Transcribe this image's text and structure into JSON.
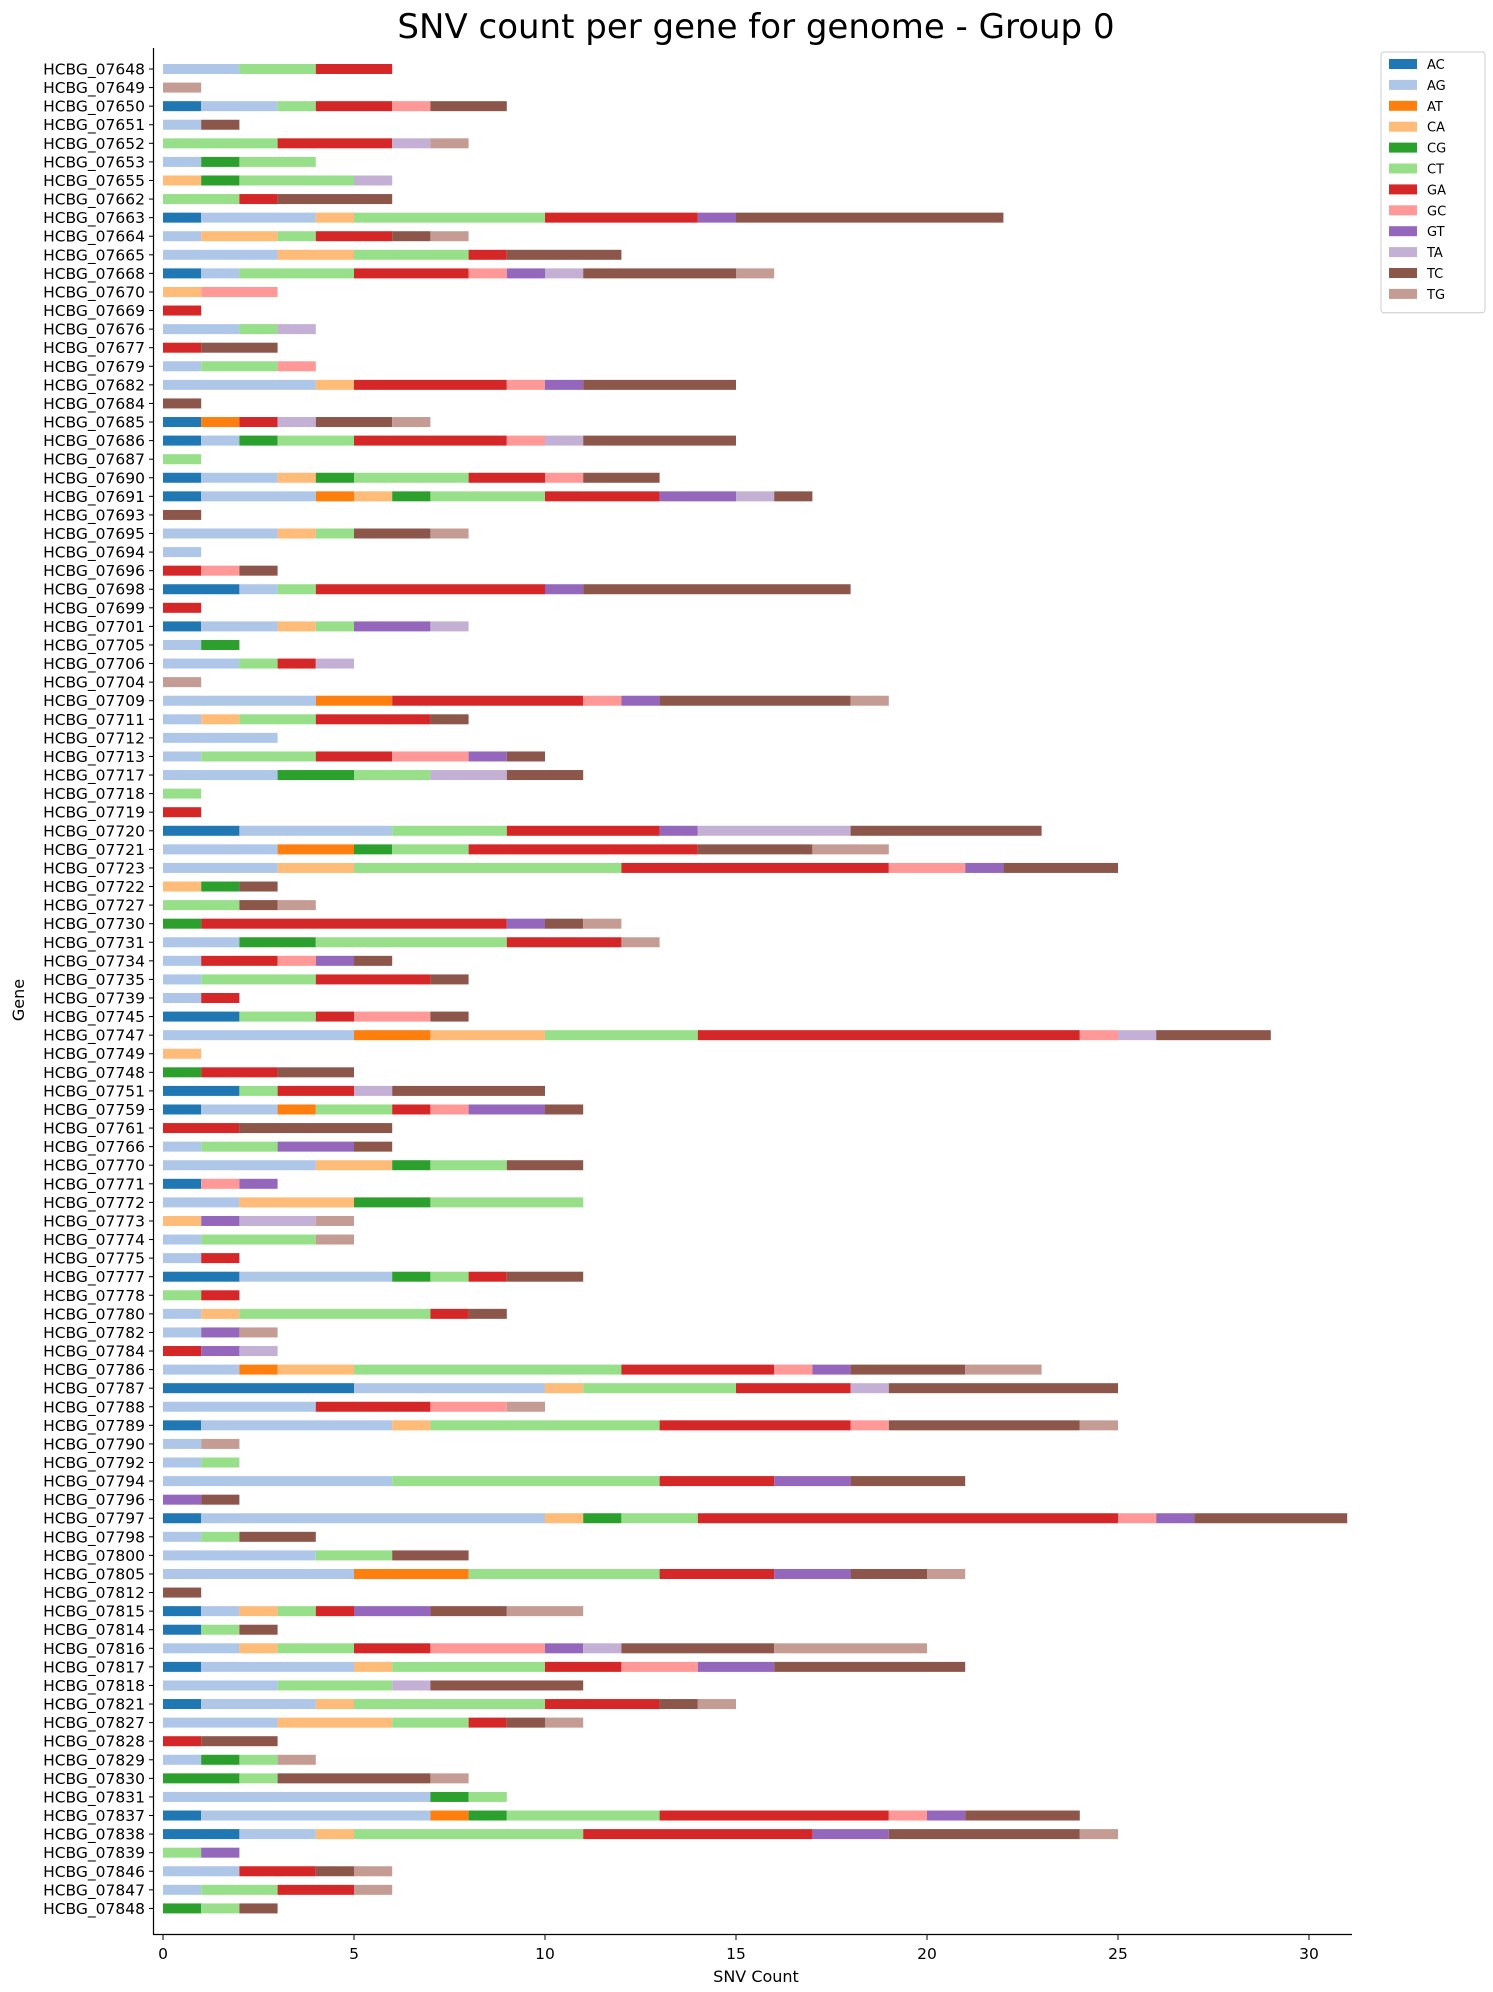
{
  "chart_data": {
    "type": "bar",
    "orientation": "horizontal",
    "stacked": true,
    "title": "SNV count per gene for genome - Group 0",
    "xlabel": "SNV Count",
    "ylabel": "Gene",
    "xlim": [
      0,
      31
    ],
    "xticks": [
      0,
      5,
      10,
      15,
      20,
      25,
      30
    ],
    "grid": false,
    "legend_position": "outside top-right",
    "series_names": [
      "AC",
      "AG",
      "AT",
      "CA",
      "CG",
      "CT",
      "GA",
      "GC",
      "GT",
      "TA",
      "TC",
      "TG"
    ],
    "colors": {
      "AC": "#1f77b4",
      "AG": "#aec7e8",
      "AT": "#ff7f0e",
      "CA": "#ffbb78",
      "CG": "#2ca02c",
      "CT": "#98df8a",
      "GA": "#d62728",
      "GC": "#ff9896",
      "GT": "#9467bd",
      "TA": "#c5b0d5",
      "TC": "#8c564b",
      "TG": "#c49c94"
    },
    "genes": [
      {
        "gene": "HCBG_07648",
        "counts": {
          "AG": 2,
          "CT": 2,
          "GA": 2
        }
      },
      {
        "gene": "HCBG_07649",
        "counts": {
          "TG": 1
        }
      },
      {
        "gene": "HCBG_07650",
        "counts": {
          "AC": 1,
          "AG": 2,
          "CT": 1,
          "GA": 2,
          "GC": 1,
          "TC": 2
        }
      },
      {
        "gene": "HCBG_07651",
        "counts": {
          "AG": 1,
          "TC": 1
        }
      },
      {
        "gene": "HCBG_07652",
        "counts": {
          "CT": 3,
          "GA": 3,
          "TA": 1,
          "TG": 1
        }
      },
      {
        "gene": "HCBG_07653",
        "counts": {
          "AG": 1,
          "CG": 1,
          "CT": 2
        }
      },
      {
        "gene": "HCBG_07655",
        "counts": {
          "CA": 1,
          "CG": 1,
          "CT": 3,
          "TA": 1
        }
      },
      {
        "gene": "HCBG_07662",
        "counts": {
          "CT": 2,
          "GA": 1,
          "TC": 3
        }
      },
      {
        "gene": "HCBG_07663",
        "counts": {
          "AC": 1,
          "AG": 3,
          "CA": 1,
          "CT": 5,
          "GA": 4,
          "GT": 1,
          "TC": 7
        }
      },
      {
        "gene": "HCBG_07664",
        "counts": {
          "AG": 1,
          "CA": 2,
          "CT": 1,
          "GA": 2,
          "TC": 1,
          "TG": 1
        }
      },
      {
        "gene": "HCBG_07665",
        "counts": {
          "AG": 3,
          "CA": 2,
          "CT": 3,
          "GA": 1,
          "TC": 3
        }
      },
      {
        "gene": "HCBG_07668",
        "counts": {
          "AC": 1,
          "AG": 1,
          "CT": 3,
          "GA": 3,
          "GC": 1,
          "GT": 1,
          "TA": 1,
          "TC": 4,
          "TG": 1
        }
      },
      {
        "gene": "HCBG_07670",
        "counts": {
          "CA": 1,
          "GC": 2
        }
      },
      {
        "gene": "HCBG_07669",
        "counts": {
          "GA": 1
        }
      },
      {
        "gene": "HCBG_07676",
        "counts": {
          "AG": 2,
          "CT": 1,
          "TA": 1
        }
      },
      {
        "gene": "HCBG_07677",
        "counts": {
          "GA": 1,
          "TC": 2
        }
      },
      {
        "gene": "HCBG_07679",
        "counts": {
          "AG": 1,
          "CT": 2,
          "GC": 1
        }
      },
      {
        "gene": "HCBG_07682",
        "counts": {
          "AG": 4,
          "CA": 1,
          "GA": 4,
          "GC": 1,
          "GT": 1,
          "TC": 4
        }
      },
      {
        "gene": "HCBG_07684",
        "counts": {
          "TC": 1
        }
      },
      {
        "gene": "HCBG_07685",
        "counts": {
          "AC": 1,
          "AT": 1,
          "GA": 1,
          "TA": 1,
          "TC": 2,
          "TG": 1
        }
      },
      {
        "gene": "HCBG_07686",
        "counts": {
          "AC": 1,
          "AG": 1,
          "CG": 1,
          "CT": 2,
          "GA": 4,
          "GC": 1,
          "TA": 1,
          "TC": 4
        }
      },
      {
        "gene": "HCBG_07687",
        "counts": {
          "CT": 1
        }
      },
      {
        "gene": "HCBG_07690",
        "counts": {
          "AC": 1,
          "AG": 2,
          "CA": 1,
          "CG": 1,
          "CT": 3,
          "GA": 2,
          "GC": 1,
          "TC": 2
        }
      },
      {
        "gene": "HCBG_07691",
        "counts": {
          "AC": 1,
          "AG": 3,
          "AT": 1,
          "CA": 1,
          "CG": 1,
          "CT": 3,
          "GA": 3,
          "GT": 2,
          "TA": 1,
          "TC": 1
        }
      },
      {
        "gene": "HCBG_07693",
        "counts": {
          "TC": 1
        }
      },
      {
        "gene": "HCBG_07695",
        "counts": {
          "AG": 3,
          "CA": 1,
          "CT": 1,
          "TC": 2,
          "TG": 1
        }
      },
      {
        "gene": "HCBG_07694",
        "counts": {
          "AG": 1
        }
      },
      {
        "gene": "HCBG_07696",
        "counts": {
          "GA": 1,
          "GC": 1,
          "TC": 1
        }
      },
      {
        "gene": "HCBG_07698",
        "counts": {
          "AC": 2,
          "AG": 1,
          "CT": 1,
          "GA": 6,
          "GT": 1,
          "TC": 7
        }
      },
      {
        "gene": "HCBG_07699",
        "counts": {
          "GA": 1
        }
      },
      {
        "gene": "HCBG_07701",
        "counts": {
          "AC": 1,
          "AG": 2,
          "CA": 1,
          "CT": 1,
          "GT": 2,
          "TA": 1
        }
      },
      {
        "gene": "HCBG_07705",
        "counts": {
          "AG": 1,
          "CG": 1
        }
      },
      {
        "gene": "HCBG_07706",
        "counts": {
          "AG": 2,
          "CT": 1,
          "GA": 1,
          "TA": 1
        }
      },
      {
        "gene": "HCBG_07704",
        "counts": {
          "TG": 1
        }
      },
      {
        "gene": "HCBG_07709",
        "counts": {
          "AG": 4,
          "AT": 2,
          "GA": 5,
          "GC": 1,
          "GT": 1,
          "TC": 5,
          "TG": 1
        }
      },
      {
        "gene": "HCBG_07711",
        "counts": {
          "AG": 1,
          "CA": 1,
          "CT": 2,
          "GA": 3,
          "TC": 1
        }
      },
      {
        "gene": "HCBG_07712",
        "counts": {
          "AG": 3
        }
      },
      {
        "gene": "HCBG_07713",
        "counts": {
          "AG": 1,
          "CT": 3,
          "GA": 2,
          "GC": 2,
          "GT": 1,
          "TC": 1
        }
      },
      {
        "gene": "HCBG_07717",
        "counts": {
          "AG": 3,
          "CG": 2,
          "CT": 2,
          "TA": 2,
          "TC": 2
        }
      },
      {
        "gene": "HCBG_07718",
        "counts": {
          "CT": 1
        }
      },
      {
        "gene": "HCBG_07719",
        "counts": {
          "GA": 1
        }
      },
      {
        "gene": "HCBG_07720",
        "counts": {
          "AC": 2,
          "AG": 4,
          "CT": 3,
          "GA": 4,
          "GT": 1,
          "TA": 4,
          "TC": 5
        }
      },
      {
        "gene": "HCBG_07721",
        "counts": {
          "AG": 3,
          "AT": 2,
          "CG": 1,
          "CT": 2,
          "GA": 6,
          "TC": 3,
          "TG": 2
        }
      },
      {
        "gene": "HCBG_07723",
        "counts": {
          "AG": 3,
          "CA": 2,
          "CT": 7,
          "GA": 7,
          "GC": 2,
          "GT": 1,
          "TC": 3
        }
      },
      {
        "gene": "HCBG_07722",
        "counts": {
          "CA": 1,
          "CG": 1,
          "TC": 1
        }
      },
      {
        "gene": "HCBG_07727",
        "counts": {
          "CT": 2,
          "TC": 1,
          "TG": 1
        }
      },
      {
        "gene": "HCBG_07730",
        "counts": {
          "CG": 1,
          "GA": 8,
          "GT": 1,
          "TC": 1,
          "TG": 1
        }
      },
      {
        "gene": "HCBG_07731",
        "counts": {
          "AG": 2,
          "CG": 2,
          "CT": 5,
          "GA": 3,
          "TG": 1
        }
      },
      {
        "gene": "HCBG_07734",
        "counts": {
          "AG": 1,
          "GA": 2,
          "GC": 1,
          "GT": 1,
          "TC": 1
        }
      },
      {
        "gene": "HCBG_07735",
        "counts": {
          "AG": 1,
          "CT": 3,
          "GA": 3,
          "TC": 1
        }
      },
      {
        "gene": "HCBG_07739",
        "counts": {
          "AG": 1,
          "GA": 1
        }
      },
      {
        "gene": "HCBG_07745",
        "counts": {
          "AC": 2,
          "CT": 2,
          "GA": 1,
          "GC": 2,
          "TC": 1
        }
      },
      {
        "gene": "HCBG_07747",
        "counts": {
          "AG": 5,
          "AT": 2,
          "CA": 3,
          "CT": 4,
          "GA": 10,
          "GC": 1,
          "TA": 1,
          "TC": 3
        }
      },
      {
        "gene": "HCBG_07749",
        "counts": {
          "CA": 1
        }
      },
      {
        "gene": "HCBG_07748",
        "counts": {
          "CG": 1,
          "GA": 2,
          "TC": 2
        }
      },
      {
        "gene": "HCBG_07751",
        "counts": {
          "AC": 2,
          "CT": 1,
          "GA": 2,
          "TA": 1,
          "TC": 4
        }
      },
      {
        "gene": "HCBG_07759",
        "counts": {
          "AC": 1,
          "AG": 2,
          "AT": 1,
          "CT": 2,
          "GA": 1,
          "GC": 1,
          "GT": 2,
          "TC": 1
        }
      },
      {
        "gene": "HCBG_07761",
        "counts": {
          "GA": 2,
          "TC": 4
        }
      },
      {
        "gene": "HCBG_07766",
        "counts": {
          "AG": 1,
          "CT": 2,
          "GT": 2,
          "TC": 1
        }
      },
      {
        "gene": "HCBG_07770",
        "counts": {
          "AG": 4,
          "CA": 2,
          "CG": 1,
          "CT": 2,
          "TC": 2
        }
      },
      {
        "gene": "HCBG_07771",
        "counts": {
          "AC": 1,
          "GC": 1,
          "GT": 1
        }
      },
      {
        "gene": "HCBG_07772",
        "counts": {
          "AG": 2,
          "CA": 3,
          "CG": 2,
          "CT": 4
        }
      },
      {
        "gene": "HCBG_07773",
        "counts": {
          "CA": 1,
          "GT": 1,
          "TA": 2,
          "TG": 1
        }
      },
      {
        "gene": "HCBG_07774",
        "counts": {
          "AG": 1,
          "CT": 3,
          "TG": 1
        }
      },
      {
        "gene": "HCBG_07775",
        "counts": {
          "AG": 1,
          "GA": 1
        }
      },
      {
        "gene": "HCBG_07777",
        "counts": {
          "AC": 2,
          "AG": 4,
          "CG": 1,
          "CT": 1,
          "GA": 1,
          "TC": 2
        }
      },
      {
        "gene": "HCBG_07778",
        "counts": {
          "CT": 1,
          "GA": 1
        }
      },
      {
        "gene": "HCBG_07780",
        "counts": {
          "AG": 1,
          "CA": 1,
          "CT": 5,
          "GA": 1,
          "TC": 1
        }
      },
      {
        "gene": "HCBG_07782",
        "counts": {
          "AG": 1,
          "GT": 1,
          "TG": 1
        }
      },
      {
        "gene": "HCBG_07784",
        "counts": {
          "GA": 1,
          "GT": 1,
          "TA": 1
        }
      },
      {
        "gene": "HCBG_07786",
        "counts": {
          "AG": 2,
          "AT": 1,
          "CA": 2,
          "CT": 7,
          "GA": 4,
          "GC": 1,
          "GT": 1,
          "TC": 3,
          "TG": 2
        }
      },
      {
        "gene": "HCBG_07787",
        "counts": {
          "AC": 5,
          "AG": 5,
          "CA": 1,
          "CT": 4,
          "GA": 3,
          "TA": 1,
          "TC": 6
        }
      },
      {
        "gene": "HCBG_07788",
        "counts": {
          "AG": 4,
          "GA": 3,
          "GC": 2,
          "TG": 1
        }
      },
      {
        "gene": "HCBG_07789",
        "counts": {
          "AC": 1,
          "AG": 5,
          "CA": 1,
          "CT": 6,
          "GA": 5,
          "GC": 1,
          "TC": 5,
          "TG": 1
        }
      },
      {
        "gene": "HCBG_07790",
        "counts": {
          "AG": 1,
          "TG": 1
        }
      },
      {
        "gene": "HCBG_07792",
        "counts": {
          "AG": 1,
          "CT": 1
        }
      },
      {
        "gene": "HCBG_07794",
        "counts": {
          "AG": 6,
          "CT": 7,
          "GA": 3,
          "GT": 2,
          "TC": 3
        }
      },
      {
        "gene": "HCBG_07796",
        "counts": {
          "GT": 1,
          "TC": 1
        }
      },
      {
        "gene": "HCBG_07797",
        "counts": {
          "AC": 1,
          "AG": 9,
          "CA": 1,
          "CG": 1,
          "CT": 2,
          "GA": 11,
          "GC": 1,
          "GT": 1,
          "TC": 4
        }
      },
      {
        "gene": "HCBG_07798",
        "counts": {
          "AG": 1,
          "CT": 1,
          "TC": 2
        }
      },
      {
        "gene": "HCBG_07800",
        "counts": {
          "AG": 4,
          "CT": 2,
          "TC": 2
        }
      },
      {
        "gene": "HCBG_07805",
        "counts": {
          "AG": 5,
          "AT": 3,
          "CT": 5,
          "GA": 3,
          "GT": 2,
          "TC": 2,
          "TG": 1
        }
      },
      {
        "gene": "HCBG_07812",
        "counts": {
          "TC": 1
        }
      },
      {
        "gene": "HCBG_07815",
        "counts": {
          "AC": 1,
          "AG": 1,
          "CA": 1,
          "CT": 1,
          "GA": 1,
          "GT": 2,
          "TC": 2,
          "TG": 2
        }
      },
      {
        "gene": "HCBG_07814",
        "counts": {
          "AC": 1,
          "CT": 1,
          "TC": 1
        }
      },
      {
        "gene": "HCBG_07816",
        "counts": {
          "AG": 2,
          "CA": 1,
          "CT": 2,
          "GA": 2,
          "GC": 3,
          "GT": 1,
          "TA": 1,
          "TC": 4,
          "TG": 4
        }
      },
      {
        "gene": "HCBG_07817",
        "counts": {
          "AC": 1,
          "AG": 4,
          "CA": 1,
          "CT": 4,
          "GA": 2,
          "GC": 2,
          "GT": 2,
          "TC": 5
        }
      },
      {
        "gene": "HCBG_07818",
        "counts": {
          "AG": 3,
          "CT": 3,
          "TA": 1,
          "TC": 4
        }
      },
      {
        "gene": "HCBG_07821",
        "counts": {
          "AC": 1,
          "AG": 3,
          "CA": 1,
          "CT": 5,
          "GA": 3,
          "TC": 1,
          "TG": 1
        }
      },
      {
        "gene": "HCBG_07827",
        "counts": {
          "AG": 3,
          "CA": 3,
          "CT": 2,
          "GA": 1,
          "TC": 1,
          "TG": 1
        }
      },
      {
        "gene": "HCBG_07828",
        "counts": {
          "GA": 1,
          "TC": 2
        }
      },
      {
        "gene": "HCBG_07829",
        "counts": {
          "AG": 1,
          "CG": 1,
          "CT": 1,
          "TG": 1
        }
      },
      {
        "gene": "HCBG_07830",
        "counts": {
          "CG": 2,
          "CT": 1,
          "TC": 4,
          "TG": 1
        }
      },
      {
        "gene": "HCBG_07831",
        "counts": {
          "AG": 7,
          "CG": 1,
          "CT": 1
        }
      },
      {
        "gene": "HCBG_07837",
        "counts": {
          "AC": 1,
          "AG": 6,
          "AT": 1,
          "CG": 1,
          "CT": 4,
          "GA": 6,
          "GC": 1,
          "GT": 1,
          "TC": 3
        }
      },
      {
        "gene": "HCBG_07838",
        "counts": {
          "AC": 2,
          "AG": 2,
          "CA": 1,
          "CT": 6,
          "GA": 6,
          "GT": 2,
          "TC": 5,
          "TG": 1
        }
      },
      {
        "gene": "HCBG_07839",
        "counts": {
          "CT": 1,
          "GT": 1
        }
      },
      {
        "gene": "HCBG_07846",
        "counts": {
          "AG": 2,
          "GA": 2,
          "TC": 1,
          "TG": 1
        }
      },
      {
        "gene": "HCBG_07847",
        "counts": {
          "AG": 1,
          "CT": 2,
          "GA": 2,
          "TG": 1
        }
      },
      {
        "gene": "HCBG_07848",
        "counts": {
          "CG": 1,
          "CT": 1,
          "TC": 1
        }
      }
    ]
  }
}
